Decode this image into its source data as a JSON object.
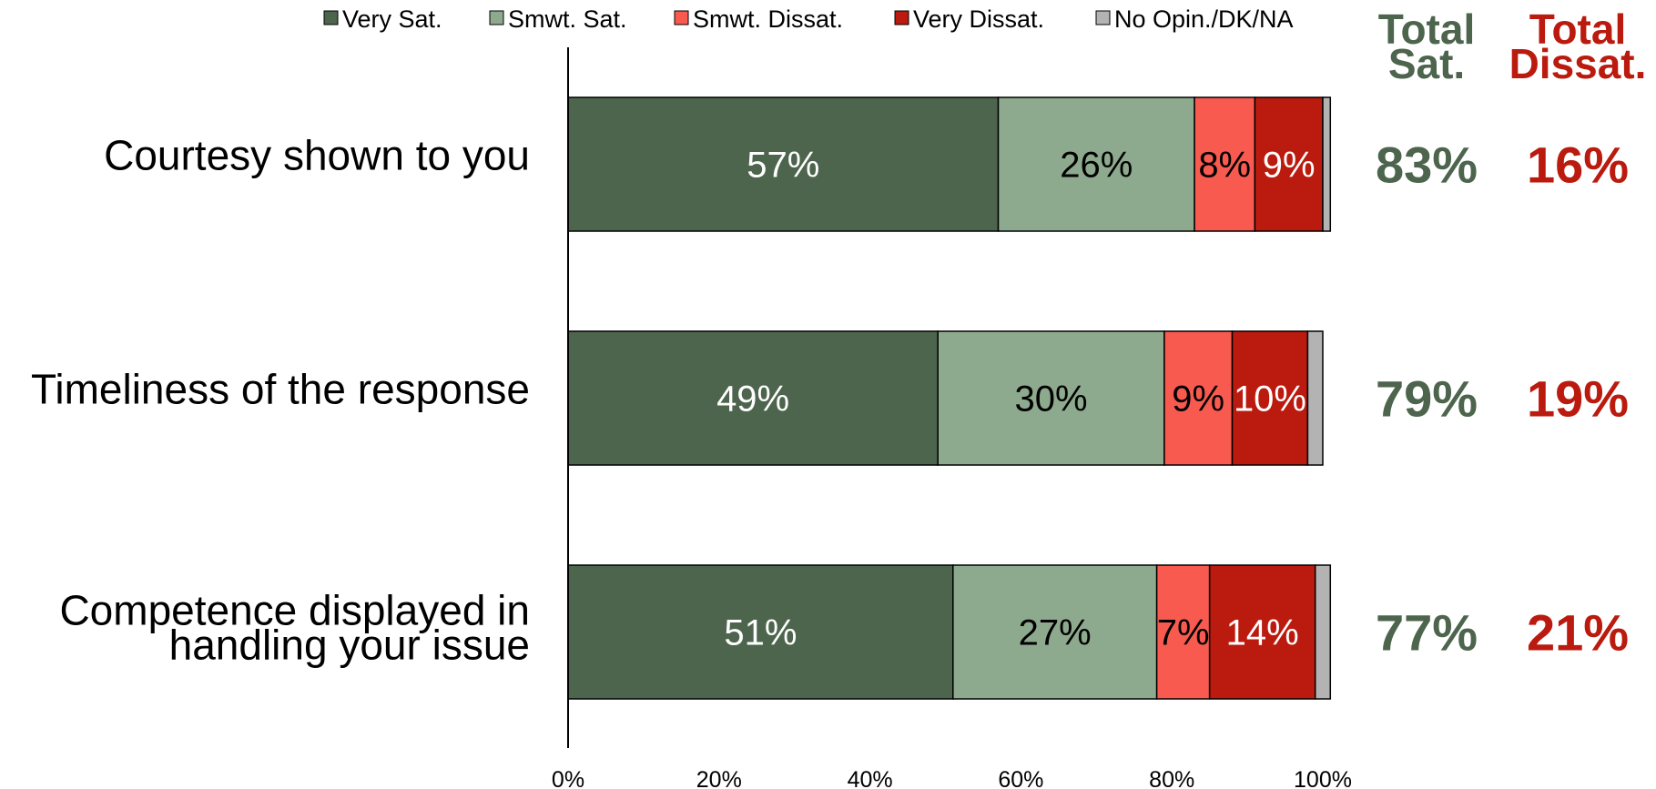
{
  "chart_data": {
    "type": "bar",
    "orientation": "horizontal",
    "stacked": true,
    "categories": [
      [
        "Courtesy shown to you"
      ],
      [
        "Timeliness of the response"
      ],
      [
        "Competence displayed in",
        "handling your issue"
      ]
    ],
    "series": [
      {
        "name": "Very Sat.",
        "color": "#4d644d",
        "label_color": "#ffffff",
        "values": [
          57,
          49,
          51
        ],
        "labels": [
          "57%",
          "49%",
          "51%"
        ]
      },
      {
        "name": "Smwt. Sat.",
        "color": "#8eaa8e",
        "label_color": "#000000",
        "values": [
          26,
          30,
          27
        ],
        "labels": [
          "26%",
          "30%",
          "27%"
        ]
      },
      {
        "name": "Smwt. Dissat.",
        "color": "#f85a50",
        "label_color": "#000000",
        "values": [
          8,
          9,
          7
        ],
        "labels": [
          "8%",
          "9%",
          "7%"
        ]
      },
      {
        "name": "Very Dissat.",
        "color": "#bb1a0e",
        "label_color": "#ffffff",
        "values": [
          9,
          10,
          14
        ],
        "labels": [
          "9%",
          "10%",
          "14%"
        ]
      },
      {
        "name": "No Opin./DK/NA",
        "color": "#b3b3b3",
        "label_color": "#000000",
        "values": [
          1,
          2,
          2
        ],
        "labels": [
          "",
          "",
          ""
        ]
      }
    ],
    "xlim": [
      0,
      100
    ],
    "xticks": [
      "0%",
      "20%",
      "40%",
      "60%",
      "80%",
      "100%"
    ],
    "legend_position": "top",
    "grid": false,
    "summary": [
      {
        "header": [
          "Total",
          "Sat."
        ],
        "color": "#4d644d",
        "values": [
          "83%",
          "79%",
          "77%"
        ]
      },
      {
        "header": [
          "Total",
          "Dissat."
        ],
        "color": "#bb1a0e",
        "values": [
          "16%",
          "19%",
          "21%"
        ]
      }
    ]
  }
}
